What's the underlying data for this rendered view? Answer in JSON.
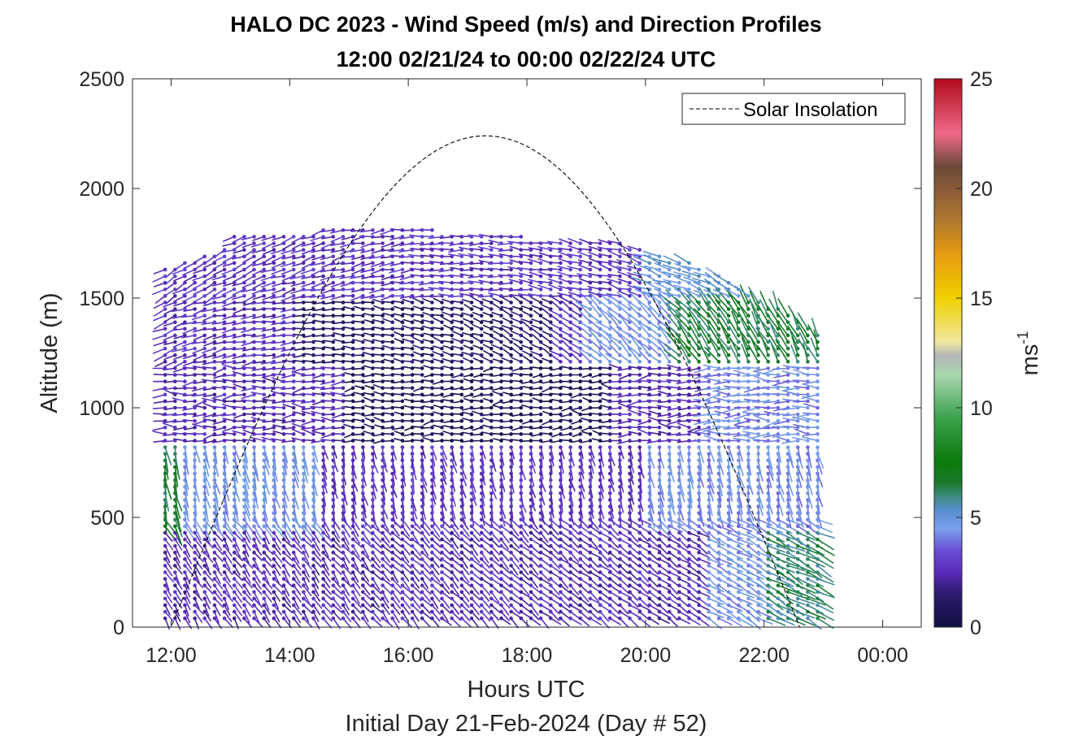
{
  "chart_data": {
    "type": "quiver",
    "title_line1": "HALO DC 2023 - Wind Speed (m/s) and Direction Profiles",
    "title_line2": "12:00 02/21/24 to 00:00 02/22/24  UTC",
    "xlabel": "Hours UTC",
    "xlabel2": "Initial Day 21-Feb-2024 (Day # 52)",
    "ylabel": "Altitude (m)",
    "xlim": [
      11.35,
      24.65
    ],
    "ylim": [
      0,
      2500
    ],
    "x_ticks": [
      {
        "value": 12,
        "label": "12:00"
      },
      {
        "value": 14,
        "label": "14:00"
      },
      {
        "value": 16,
        "label": "16:00"
      },
      {
        "value": 18,
        "label": "18:00"
      },
      {
        "value": 20,
        "label": "20:00"
      },
      {
        "value": 22,
        "label": "22:00"
      },
      {
        "value": 24,
        "label": "00:00"
      }
    ],
    "y_ticks": [
      0,
      500,
      1000,
      1500,
      2000,
      2500
    ],
    "colorbar": {
      "label": "ms",
      "label_exponent": "-1",
      "range": [
        0,
        25
      ],
      "ticks": [
        0,
        5,
        10,
        15,
        20,
        25
      ],
      "stops": [
        {
          "v": 0,
          "c": "#101040"
        },
        {
          "v": 1.5,
          "c": "#2d1a6e"
        },
        {
          "v": 2.5,
          "c": "#5a2ab8"
        },
        {
          "v": 3.5,
          "c": "#6b4fd6"
        },
        {
          "v": 4.5,
          "c": "#7aa0ec"
        },
        {
          "v": 5.3,
          "c": "#5a8ed0"
        },
        {
          "v": 6.0,
          "c": "#3a8a7a"
        },
        {
          "v": 6.6,
          "c": "#1a7a2a"
        },
        {
          "v": 7.5,
          "c": "#0a7a0a"
        },
        {
          "v": 9.5,
          "c": "#3aa04a"
        },
        {
          "v": 11.5,
          "c": "#a8d8b0"
        },
        {
          "v": 12.4,
          "c": "#b5b5b5"
        },
        {
          "v": 13.0,
          "c": "#f0e8a0"
        },
        {
          "v": 15.0,
          "c": "#f0d000"
        },
        {
          "v": 17.0,
          "c": "#e69a10"
        },
        {
          "v": 18.5,
          "c": "#b07a30"
        },
        {
          "v": 20.0,
          "c": "#8a5a38"
        },
        {
          "v": 21.0,
          "c": "#6a4a38"
        },
        {
          "v": 22.5,
          "c": "#f06a8a"
        },
        {
          "v": 25.0,
          "c": "#b00a1a"
        }
      ]
    },
    "solar_insolation": {
      "name": "Solar Insolation",
      "sunrise_hour": 12.0,
      "sunset_hour": 22.6,
      "peak_hour": 17.3,
      "peak_altitude": 2240
    },
    "wind_field_summary": {
      "time_start": 11.9,
      "time_end": 23.0,
      "time_step_hours": 0.1667,
      "altitude_min": 40,
      "altitude_step_m": 30,
      "note": "speed color per barb; direction vectors in m/s"
    },
    "legend_position": "top-right",
    "grid": false
  }
}
